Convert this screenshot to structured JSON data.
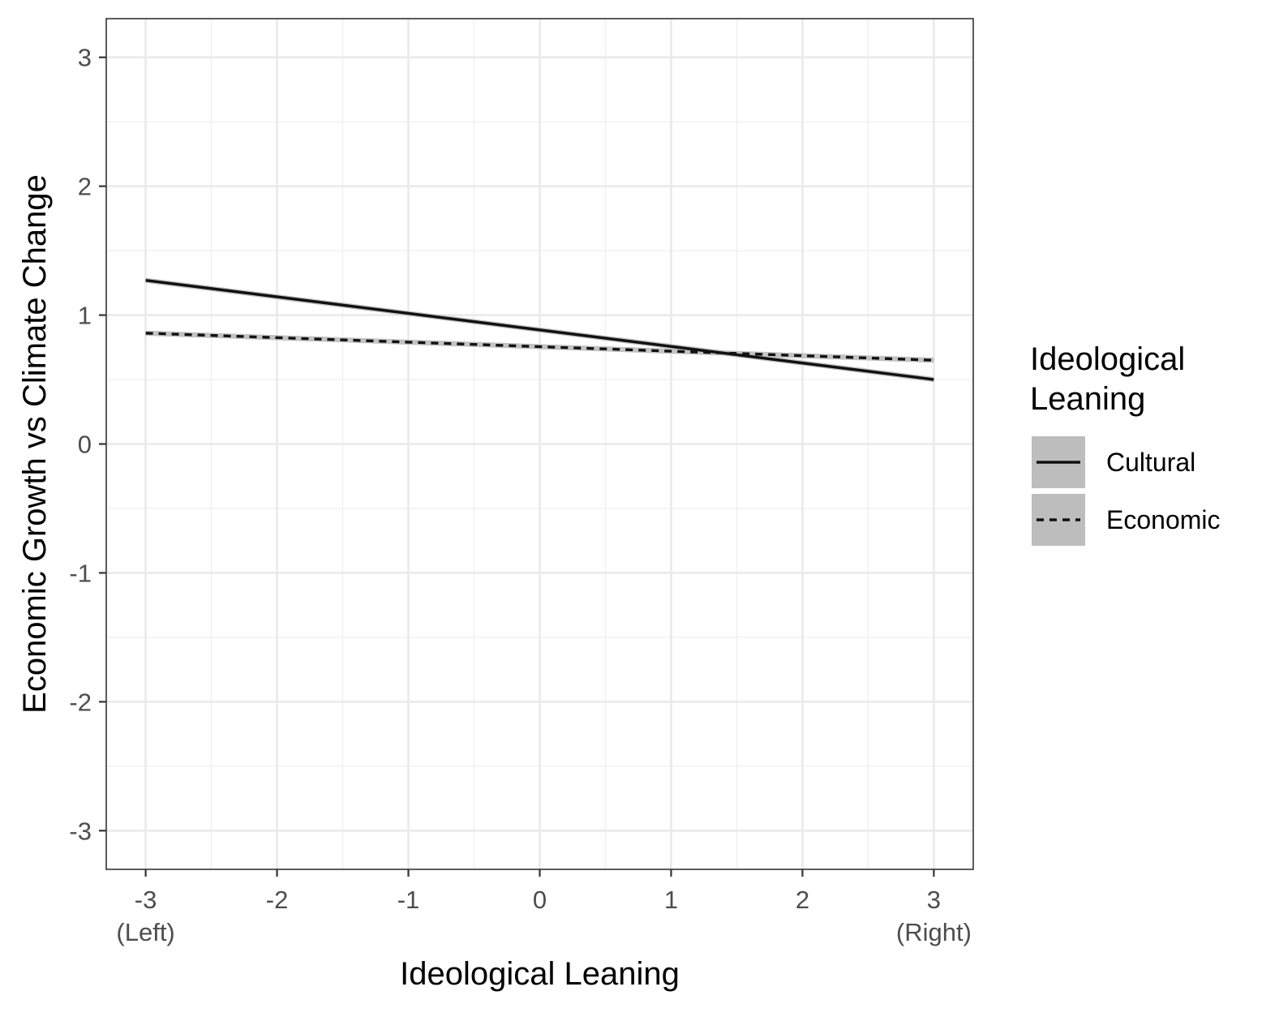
{
  "chart_data": {
    "type": "line",
    "xlabel": "Ideological Leaning",
    "ylabel": "Economic Growth vs Climate Change",
    "xlim": [
      -3.3,
      3.3
    ],
    "ylim": [
      -3.3,
      3.3
    ],
    "x_ticks": [
      {
        "value": -3,
        "label": "-3",
        "sublabel": "(Left)"
      },
      {
        "value": -2,
        "label": "-2",
        "sublabel": ""
      },
      {
        "value": -1,
        "label": "-1",
        "sublabel": ""
      },
      {
        "value": 0,
        "label": "0",
        "sublabel": ""
      },
      {
        "value": 1,
        "label": "1",
        "sublabel": ""
      },
      {
        "value": 2,
        "label": "2",
        "sublabel": ""
      },
      {
        "value": 3,
        "label": "3",
        "sublabel": "(Right)"
      }
    ],
    "y_ticks": [
      {
        "value": 3,
        "label": "3"
      },
      {
        "value": 2,
        "label": "2"
      },
      {
        "value": 1,
        "label": "1"
      },
      {
        "value": 0,
        "label": "0"
      },
      {
        "value": -1,
        "label": "-1"
      },
      {
        "value": -2,
        "label": "-2"
      },
      {
        "value": -3,
        "label": "-3"
      }
    ],
    "grid": true,
    "series": [
      {
        "name": "Cultural",
        "linetype": "solid",
        "color": "#111111",
        "ribbon_color": "#bdbdbd",
        "x": [
          -3,
          3
        ],
        "y": [
          1.27,
          0.5
        ],
        "ci_lower": [
          1.25,
          0.48
        ],
        "ci_upper": [
          1.29,
          0.52
        ]
      },
      {
        "name": "Economic",
        "linetype": "dashed",
        "color": "#111111",
        "ribbon_color": "#bdbdbd",
        "x": [
          -3,
          3
        ],
        "y": [
          0.86,
          0.65
        ],
        "ci_lower": [
          0.84,
          0.63
        ],
        "ci_upper": [
          0.88,
          0.67
        ]
      }
    ],
    "legend": {
      "title_lines": [
        "Ideological",
        "Leaning"
      ],
      "position": "right"
    }
  }
}
